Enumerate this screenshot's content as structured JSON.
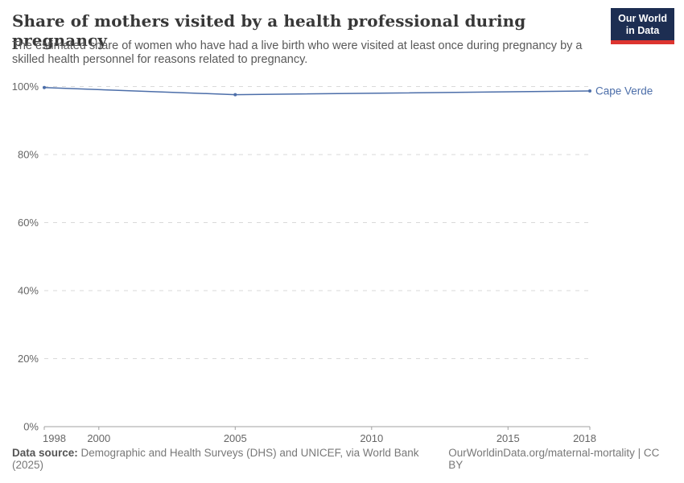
{
  "header": {
    "title": "Share of mothers visited by a health professional during pregnancy",
    "subtitle": "The estimated share of women who have had a live birth who were visited at least once during pregnancy by a skilled health personnel for reasons related to pregnancy.",
    "logo": {
      "line1": "Our World",
      "line2": "in Data"
    }
  },
  "chart_data": {
    "type": "line",
    "title": "Share of mothers visited by a health professional during pregnancy",
    "xlabel": "",
    "ylabel": "",
    "xlim": [
      1998,
      2018
    ],
    "ylim": [
      0,
      100
    ],
    "x_ticks": [
      1998,
      2000,
      2005,
      2010,
      2015,
      2018
    ],
    "y_ticks": [
      0,
      20,
      40,
      60,
      80,
      100
    ],
    "y_tick_suffix": "%",
    "grid": "dashed-horizontal",
    "legend_position": "end-of-line",
    "series": [
      {
        "name": "Cape Verde",
        "color": "#4C6EA9",
        "points": [
          {
            "x": 1998,
            "y": 99.7
          },
          {
            "x": 2005,
            "y": 97.6
          },
          {
            "x": 2018,
            "y": 98.7
          }
        ]
      }
    ]
  },
  "footer": {
    "data_source_label": "Data source:",
    "data_source_value": "Demographic and Health Surveys (DHS) and UNICEF, via World Bank (2025)",
    "rights": "OurWorldinData.org/maternal-mortality | CC BY"
  },
  "colors": {
    "accent_line": "#4C6EA9",
    "grid": "#dadada",
    "axis": "#a0a0a0",
    "tick_label": "#666666",
    "logo_bg": "#1d2e52",
    "logo_stripe": "#dd3530"
  }
}
